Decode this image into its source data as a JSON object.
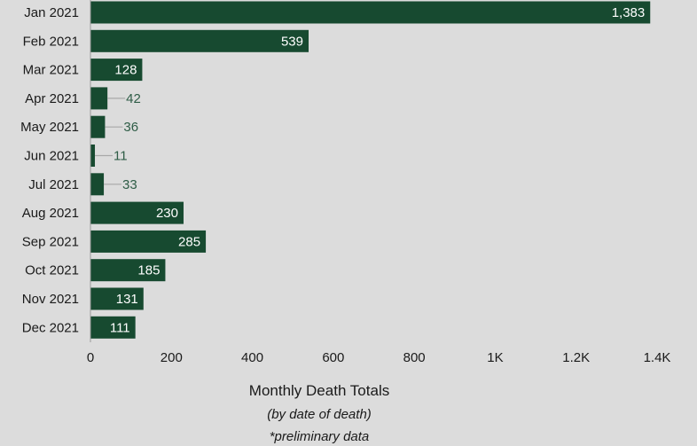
{
  "chart_data": {
    "type": "bar",
    "orientation": "horizontal",
    "categories": [
      "Jan 2021",
      "Feb 2021",
      "Mar 2021",
      "Apr 2021",
      "May 2021",
      "Jun 2021",
      "Jul 2021",
      "Aug 2021",
      "Sep 2021",
      "Oct 2021",
      "Nov 2021",
      "Dec 2021"
    ],
    "values": [
      1383,
      539,
      128,
      42,
      36,
      11,
      33,
      230,
      285,
      185,
      131,
      111
    ],
    "value_labels": [
      "1,383",
      "539",
      "128",
      "42",
      "36",
      "11",
      "33",
      "230",
      "285",
      "185",
      "131",
      "111"
    ],
    "xlim": [
      0,
      1400
    ],
    "xticks": [
      0,
      200,
      400,
      600,
      800,
      1000,
      1200,
      1400
    ],
    "xtick_labels": [
      "0",
      "200",
      "400",
      "600",
      "800",
      "1K",
      "1.2K",
      "1.4K"
    ],
    "title": "",
    "xlabel": "Monthly Death Totals",
    "subtitle_lines": [
      "(by date of death)",
      "*preliminary data"
    ],
    "grid": false,
    "colors": {
      "bar": "#174a30",
      "background": "#dcdcdc",
      "outside_label": "#2f5d47",
      "leader": "#a8a8a8"
    }
  }
}
